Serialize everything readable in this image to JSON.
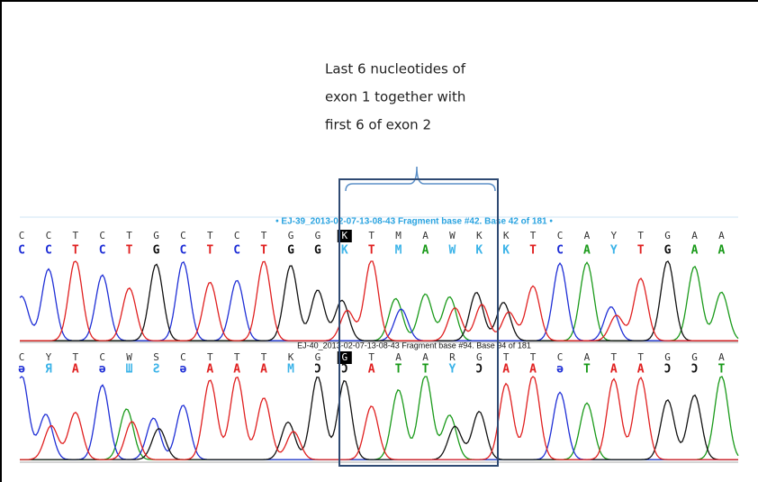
{
  "annotation": {
    "lines": [
      "Last 6 nucleotides of",
      "exon 1 together with",
      "first 6 of exon 2"
    ]
  },
  "tracks": [
    {
      "header": "• EJ-39_2013-02-07-13-08-43 Fragment base #42. Base 42 of 181 •",
      "calls": [
        "C",
        "C",
        "T",
        "C",
        "T",
        "G",
        "C",
        "T",
        "C",
        "T",
        "G",
        "G",
        "K",
        "T",
        "M",
        "A",
        "W",
        "K",
        "K",
        "T",
        "C",
        "A",
        "Y",
        "T",
        "G",
        "A",
        "A"
      ],
      "colored_calls": [
        "C",
        "C",
        "T",
        "C",
        "T",
        "G",
        "C",
        "T",
        "C",
        "T",
        "G",
        "G",
        "K",
        "T",
        "M",
        "A",
        "W",
        "K",
        "K",
        "T",
        "C",
        "A",
        "Y",
        "T",
        "G",
        "A",
        "A"
      ]
    },
    {
      "header": "EJ-40_2013-02-07-13-08-43 Fragment base #94. Base 94 of 181",
      "calls": [
        "C",
        "Y",
        "T",
        "C",
        "W",
        "S",
        "C",
        "T",
        "T",
        "T",
        "K",
        "G",
        "G",
        "T",
        "A",
        "A",
        "R",
        "G",
        "T",
        "T",
        "C",
        "A",
        "T",
        "T",
        "G",
        "G",
        "A"
      ],
      "colored_calls": [
        "ə",
        "Я",
        "A",
        "ə",
        "Ш",
        "Ƨ",
        "ə",
        "A",
        "A",
        "A",
        "M",
        "Ɔ",
        "Ɔ",
        "A",
        "T",
        "T",
        "Y",
        "Ɔ",
        "A",
        "A",
        "ə",
        "T",
        "A",
        "A",
        "Ɔ",
        "Ɔ",
        "T"
      ]
    }
  ]
}
